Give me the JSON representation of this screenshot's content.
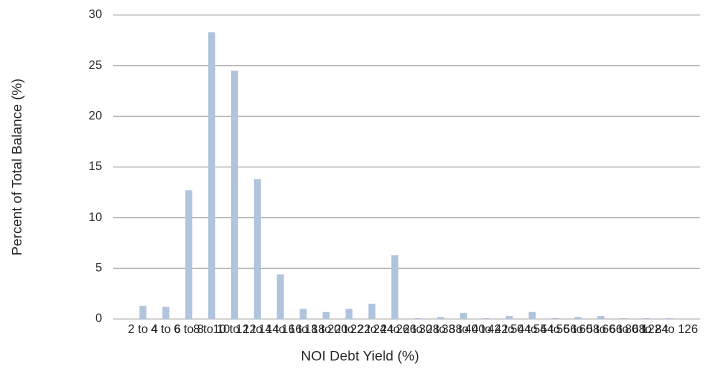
{
  "chart_data": {
    "type": "bar",
    "categories": [
      "2 to 4",
      "4 to 6",
      "6 to 8",
      "8 to 10",
      "10 to 12",
      "12 to 14",
      "14 to 16",
      "16 to 18",
      "18 to 20",
      "20 to 22",
      "22 to 24",
      "24 to 26",
      "26 to 28",
      "30 to 38",
      "38 to 40",
      "40 to 42",
      "42 to 44",
      "50 to 54",
      "54 to 56",
      "56 to 58",
      "60 to 66",
      "66 to 68",
      "80 to 84",
      "122 to 126"
    ],
    "values": [
      1.3,
      1.2,
      12.7,
      28.3,
      24.5,
      13.8,
      4.4,
      1.0,
      0.7,
      1.0,
      1.5,
      6.3,
      0.1,
      0.2,
      0.6,
      0.1,
      0.3,
      0.7,
      0.1,
      0.2,
      0.3,
      0.1,
      0.1,
      0.1
    ],
    "color": "#b0c4de",
    "xlabel": "NOI Debt Yield (%)",
    "ylabel": "Percent of Total Balance (%)",
    "ylim": [
      0,
      30
    ],
    "yticks": [
      0,
      5,
      10,
      15,
      20,
      25,
      30
    ],
    "grid": true
  }
}
